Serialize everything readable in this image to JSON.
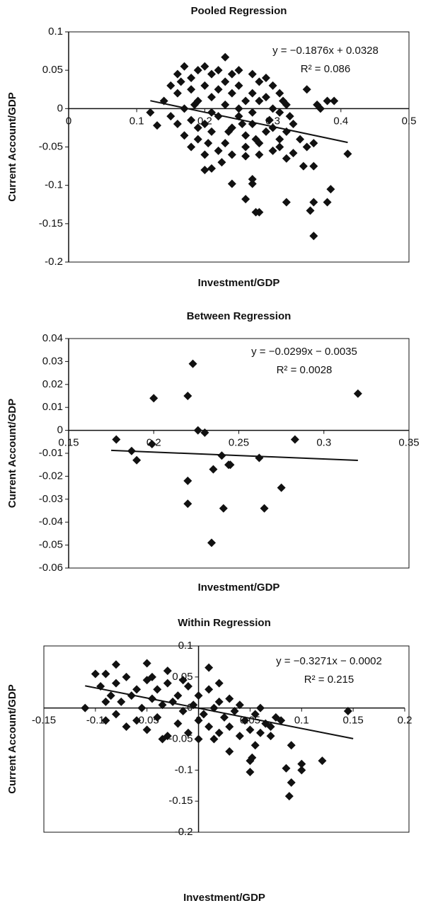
{
  "chart_data": [
    {
      "type": "scatter",
      "title": "Pooled Regression",
      "x_label": "Investment/GDP",
      "y_label": "Current Account/GDP",
      "equation": "y = −0.1876x + 0.0328",
      "r_squared": "R² = 0.086",
      "trendline": {
        "slope": -0.1876,
        "intercept": 0.0328,
        "x_range": [
          0.12,
          0.41
        ]
      },
      "xlim": [
        0,
        0.5
      ],
      "xticks": [
        0,
        0.1,
        0.2,
        0.3,
        0.4,
        0.5
      ],
      "ylim": [
        -0.2,
        0.1
      ],
      "yticks": [
        0.1,
        0.05,
        0,
        -0.05,
        -0.1,
        -0.15,
        -0.2
      ],
      "series": [
        {
          "color": "#111111",
          "x": [
            0.15,
            0.16,
            0.17,
            0.18,
            0.19,
            0.2,
            0.21,
            0.22,
            0.25,
            0.27,
            0.28,
            0.3,
            0.31,
            0.14,
            0.15,
            0.16,
            0.17,
            0.18,
            0.19,
            0.2,
            0.21,
            0.22,
            0.23,
            0.24,
            0.25,
            0.26,
            0.27,
            0.28,
            0.29,
            0.3,
            0.31,
            0.32,
            0.16,
            0.17,
            0.18,
            0.19,
            0.2,
            0.21,
            0.22,
            0.23,
            0.24,
            0.25,
            0.26,
            0.27,
            0.28,
            0.29,
            0.3,
            0.31,
            0.32,
            0.33,
            0.18,
            0.2,
            0.22,
            0.24,
            0.26,
            0.28,
            0.3,
            0.25,
            0.23,
            0.21,
            0.19,
            0.27,
            0.29,
            0.24,
            0.165,
            0.185,
            0.205,
            0.225,
            0.235,
            0.255,
            0.275,
            0.295,
            0.315,
            0.325,
            0.41,
            0.36,
            0.355,
            0.36,
            0.38,
            0.385,
            0.36,
            0.345,
            0.32,
            0.28,
            0.275,
            0.26,
            0.27,
            0.27,
            0.24,
            0.26,
            0.21,
            0.2,
            0.35,
            0.39,
            0.37,
            0.365,
            0.38,
            0.23,
            0.12,
            0.13,
            0.33,
            0.31,
            0.32,
            0.36,
            0.35,
            0.34
          ],
          "y": [
            0.03,
            0.045,
            0.055,
            0.04,
            0.05,
            0.055,
            0.045,
            0.05,
            0.05,
            0.045,
            0.035,
            0.03,
            0.02,
            0.01,
            -0.01,
            0.02,
            0,
            0.025,
            0.01,
            0.03,
            0.015,
            0.025,
            0.035,
            0.02,
            0.03,
            0.01,
            0.02,
            0.01,
            0.015,
            0,
            -0.005,
            0.005,
            -0.02,
            -0.035,
            -0.015,
            -0.04,
            -0.02,
            -0.03,
            -0.01,
            -0.045,
            -0.025,
            -0.01,
            -0.035,
            -0.02,
            -0.045,
            -0.03,
            -0.025,
            -0.04,
            -0.03,
            -0.02,
            -0.05,
            -0.06,
            -0.055,
            -0.06,
            -0.05,
            -0.06,
            -0.055,
            0,
            0.005,
            -0.005,
            -0.025,
            -0.005,
            0.04,
            0.045,
            0.035,
            0.005,
            -0.045,
            -0.07,
            -0.03,
            -0.02,
            -0.04,
            -0.015,
            0.01,
            -0.01,
            -0.059,
            -0.166,
            -0.133,
            -0.122,
            -0.122,
            -0.105,
            -0.075,
            -0.075,
            -0.122,
            -0.135,
            -0.135,
            -0.118,
            -0.098,
            -0.092,
            -0.098,
            -0.062,
            -0.078,
            -0.08,
            0.025,
            0.01,
            0,
            0.005,
            0.01,
            0.067,
            -0.005,
            -0.022,
            -0.058,
            -0.05,
            -0.065,
            -0.045,
            -0.05,
            -0.04
          ]
        }
      ]
    },
    {
      "type": "scatter",
      "title": "Between Regression",
      "x_label": "Investment/GDP",
      "y_label": "Current Account/GDP",
      "equation": "y = −0.0299x − 0.0035",
      "r_squared": "R² = 0.0028",
      "trendline": {
        "slope": -0.0299,
        "intercept": -0.0035,
        "x_range": [
          0.175,
          0.32
        ]
      },
      "xlim": [
        0.15,
        0.35
      ],
      "xticks": [
        0.15,
        0.2,
        0.25,
        0.3,
        0.35
      ],
      "ylim": [
        -0.06,
        0.04
      ],
      "yticks": [
        0.04,
        0.03,
        0.02,
        0.01,
        0,
        -0.01,
        -0.02,
        -0.03,
        -0.04,
        -0.05,
        -0.06
      ],
      "series": [
        {
          "color": "#111111",
          "x": [
            0.178,
            0.187,
            0.19,
            0.2,
            0.199,
            0.22,
            0.223,
            0.226,
            0.23,
            0.22,
            0.22,
            0.235,
            0.24,
            0.245,
            0.244,
            0.234,
            0.241,
            0.262,
            0.265,
            0.275,
            0.283,
            0.32
          ],
          "y": [
            -0.004,
            -0.009,
            -0.013,
            0.014,
            -0.006,
            0.015,
            0.029,
            0,
            -0.001,
            -0.022,
            -0.032,
            -0.017,
            -0.011,
            -0.015,
            -0.015,
            -0.049,
            -0.034,
            -0.012,
            -0.034,
            -0.025,
            -0.004,
            0.016
          ]
        }
      ]
    },
    {
      "type": "scatter",
      "title": "Within Regression",
      "x_label": "Investment/GDP",
      "y_label": "Current Account/GDP",
      "equation": "y = −0.3271x − 0.0002",
      "r_squared": "R² = 0.215",
      "trendline": {
        "slope": -0.3271,
        "intercept": -0.0002,
        "x_range": [
          -0.11,
          0.15
        ]
      },
      "xlim": [
        -0.15,
        0.2
      ],
      "xticks": [
        -0.15,
        -0.1,
        -0.05,
        0,
        0.05,
        0.1,
        0.15,
        0.2
      ],
      "ylim": [
        -0.2,
        0.1
      ],
      "yticks": [
        0.1,
        0.05,
        0,
        -0.05,
        -0.1,
        -0.15,
        -0.2
      ],
      "series": [
        {
          "color": "#111111",
          "x": [
            -0.08,
            -0.07,
            -0.06,
            -0.05,
            -0.04,
            -0.03,
            -0.02,
            -0.01,
            0,
            0.01,
            0.02,
            0.03,
            -0.085,
            -0.075,
            -0.065,
            -0.055,
            -0.045,
            -0.035,
            -0.025,
            -0.015,
            -0.005,
            0.005,
            0.015,
            0.025,
            0.035,
            0.045,
            0.055,
            0.065,
            0.075,
            -0.08,
            -0.07,
            -0.06,
            -0.05,
            -0.04,
            -0.03,
            -0.02,
            -0.01,
            0,
            0.01,
            0.02,
            0.03,
            0.04,
            0.05,
            0.06,
            0.07,
            0.08,
            -0.09,
            -0.045,
            0.02,
            0.04,
            0.06,
            -0.015,
            -0.035,
            0.015,
            -0.11,
            0.145,
            0.12,
            0.1,
            0.1,
            0.09,
            0.088,
            0.085,
            0.09,
            0.07,
            0.05,
            0.05,
            0.052,
            0.055,
            -0.09,
            -0.08,
            -0.05,
            0.01,
            -0.1,
            -0.03,
            -0.095,
            -0.09,
            0.03,
            0
          ],
          "y": [
            0.04,
            0.05,
            0.03,
            0.045,
            0.03,
            0.04,
            0.02,
            0.035,
            0.02,
            0.03,
            0.01,
            0.015,
            0.02,
            0.01,
            0.02,
            0,
            0.015,
            0.005,
            0.01,
            -0.005,
            0.005,
            -0.01,
            0,
            -0.015,
            -0.005,
            -0.02,
            -0.01,
            -0.025,
            -0.015,
            -0.01,
            -0.03,
            -0.02,
            -0.035,
            -0.015,
            -0.045,
            -0.025,
            -0.04,
            -0.02,
            -0.03,
            -0.04,
            -0.03,
            -0.045,
            -0.035,
            -0.04,
            -0.03,
            -0.02,
            0.01,
            0.05,
            0.04,
            0.005,
            0,
            0.045,
            -0.05,
            -0.05,
            0,
            -0.005,
            -0.085,
            -0.09,
            -0.1,
            -0.12,
            -0.142,
            -0.097,
            -0.06,
            -0.045,
            -0.103,
            -0.085,
            -0.08,
            -0.06,
            0.055,
            0.07,
            0.072,
            0.065,
            0.055,
            0.06,
            0.035,
            -0.02,
            -0.07,
            -0.05
          ]
        }
      ]
    }
  ]
}
